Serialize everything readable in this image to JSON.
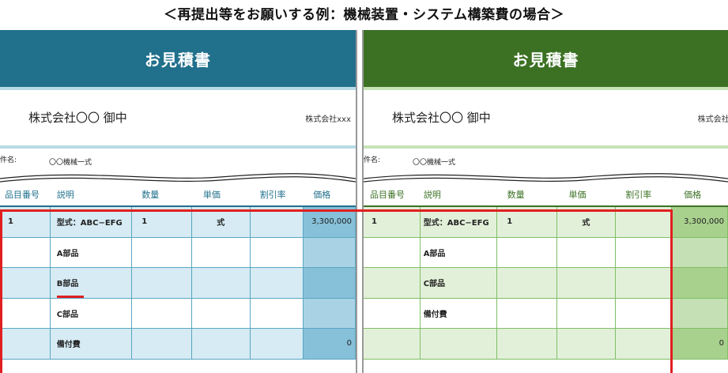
{
  "heading": "＜再提出等をお願いする例：機械装置・システム構築費の場合＞",
  "left_quote": {
    "title": "お見積書",
    "addressee": "株式会社〇〇 御中",
    "issuer": "株式会社xxx",
    "subject_label": "件名:",
    "subject_value": "〇〇機械一式",
    "columns": [
      "品目番号",
      "説明",
      "数量",
      "単価",
      "割引率",
      "価格"
    ],
    "rows": [
      {
        "no": "1",
        "desc": "型式：ABC−EFG",
        "qty": "1",
        "unit": "式",
        "discount": "",
        "price": "3,300,000"
      },
      {
        "no": "",
        "desc": "A部品",
        "qty": "",
        "unit": "",
        "discount": "",
        "price": ""
      },
      {
        "no": "",
        "desc": "B部品",
        "qty": "",
        "unit": "",
        "discount": "",
        "price": ""
      },
      {
        "no": "",
        "desc": "C部品",
        "qty": "",
        "unit": "",
        "discount": "",
        "price": ""
      },
      {
        "no": "",
        "desc": "備付費",
        "qty": "",
        "unit": "",
        "discount": "",
        "price": "0"
      }
    ]
  },
  "right_quote": {
    "title": "お見積書",
    "addressee": "株式会社〇〇 御中",
    "issuer": "株式会社□□□",
    "subject_label": "件名:",
    "subject_value": "〇〇機械一式",
    "columns": [
      "品目番号",
      "説明",
      "数量",
      "単価",
      "割引率",
      "価格"
    ],
    "rows": [
      {
        "no": "1",
        "desc": "型式：ABC−EFG",
        "qty": "1",
        "unit": "式",
        "discount": "",
        "price": "3,300,000"
      },
      {
        "no": "",
        "desc": "A部品",
        "qty": "",
        "unit": "",
        "discount": "",
        "price": ""
      },
      {
        "no": "",
        "desc": "C部品",
        "qty": "",
        "unit": "",
        "discount": "",
        "price": ""
      },
      {
        "no": "",
        "desc": "備付費",
        "qty": "",
        "unit": "",
        "discount": "",
        "price": ""
      },
      {
        "no": "",
        "desc": "",
        "qty": "",
        "unit": "",
        "discount": "",
        "price": "0"
      }
    ]
  },
  "colors": {
    "blue_header": "#21708c",
    "green_header": "#3c7124",
    "highlight": "#e02020"
  }
}
